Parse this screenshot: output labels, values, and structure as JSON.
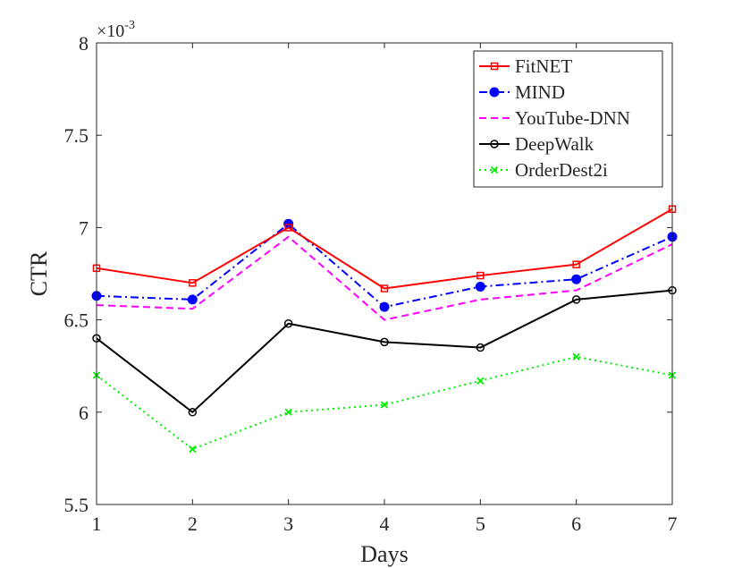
{
  "chart_data": {
    "type": "line",
    "title": "",
    "xlabel": "Days",
    "ylabel": "CTR",
    "x": [
      1,
      2,
      3,
      4,
      5,
      6,
      7
    ],
    "xlim": [
      1,
      7
    ],
    "ylim": [
      5.5,
      8
    ],
    "xticks": [
      1,
      2,
      3,
      4,
      5,
      6,
      7
    ],
    "yticks": [
      5.5,
      6,
      6.5,
      7,
      7.5,
      8
    ],
    "xtick_labels": [
      "1",
      "2",
      "3",
      "4",
      "5",
      "6",
      "7"
    ],
    "ytick_labels": [
      "5.5",
      "6",
      "6.5",
      "7",
      "7.5",
      "8"
    ],
    "y_exponent_prefix": "×10",
    "y_exponent_power": "-3",
    "grid": false,
    "legend_position": "top-right",
    "series": [
      {
        "name": "FitNET",
        "color": "#ff0000",
        "dash": "solid",
        "marker": "square",
        "values": [
          6.78,
          6.7,
          7.0,
          6.67,
          6.74,
          6.8,
          7.1
        ]
      },
      {
        "name": "MIND",
        "color": "#0000ff",
        "dash": "dashdot",
        "marker": "circle-filled",
        "values": [
          6.63,
          6.61,
          7.02,
          6.57,
          6.68,
          6.72,
          6.95
        ]
      },
      {
        "name": "YouTube-DNN",
        "color": "#ff00ff",
        "dash": "dashed",
        "marker": "none",
        "values": [
          6.58,
          6.56,
          6.95,
          6.5,
          6.61,
          6.66,
          6.91
        ]
      },
      {
        "name": "DeepWalk",
        "color": "#000000",
        "dash": "solid",
        "marker": "circle",
        "values": [
          6.4,
          6.0,
          6.48,
          6.38,
          6.35,
          6.61,
          6.66
        ]
      },
      {
        "name": "OrderDest2i",
        "color": "#00ee00",
        "dash": "dotted",
        "marker": "x",
        "values": [
          6.2,
          5.8,
          6.0,
          6.04,
          6.17,
          6.3,
          6.2
        ]
      }
    ]
  }
}
